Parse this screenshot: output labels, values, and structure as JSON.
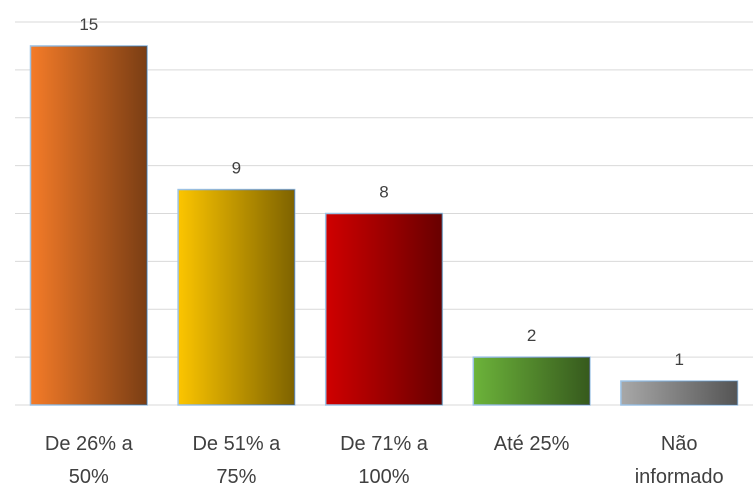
{
  "chart_data": {
    "type": "bar",
    "categories": [
      "De 26% a 50%",
      "De 51% a 75%",
      "De 71% a 100%",
      "Até 25%",
      "Não informado"
    ],
    "values": [
      15,
      9,
      8,
      2,
      1
    ],
    "colors": [
      "#f47b28",
      "#fcc500",
      "#d00000",
      "#6cb33a",
      "#a8a8a8"
    ],
    "ylim": [
      0,
      16
    ],
    "yticks": [
      0,
      2,
      4,
      6,
      8,
      10,
      12,
      14,
      16
    ],
    "grid": true
  }
}
